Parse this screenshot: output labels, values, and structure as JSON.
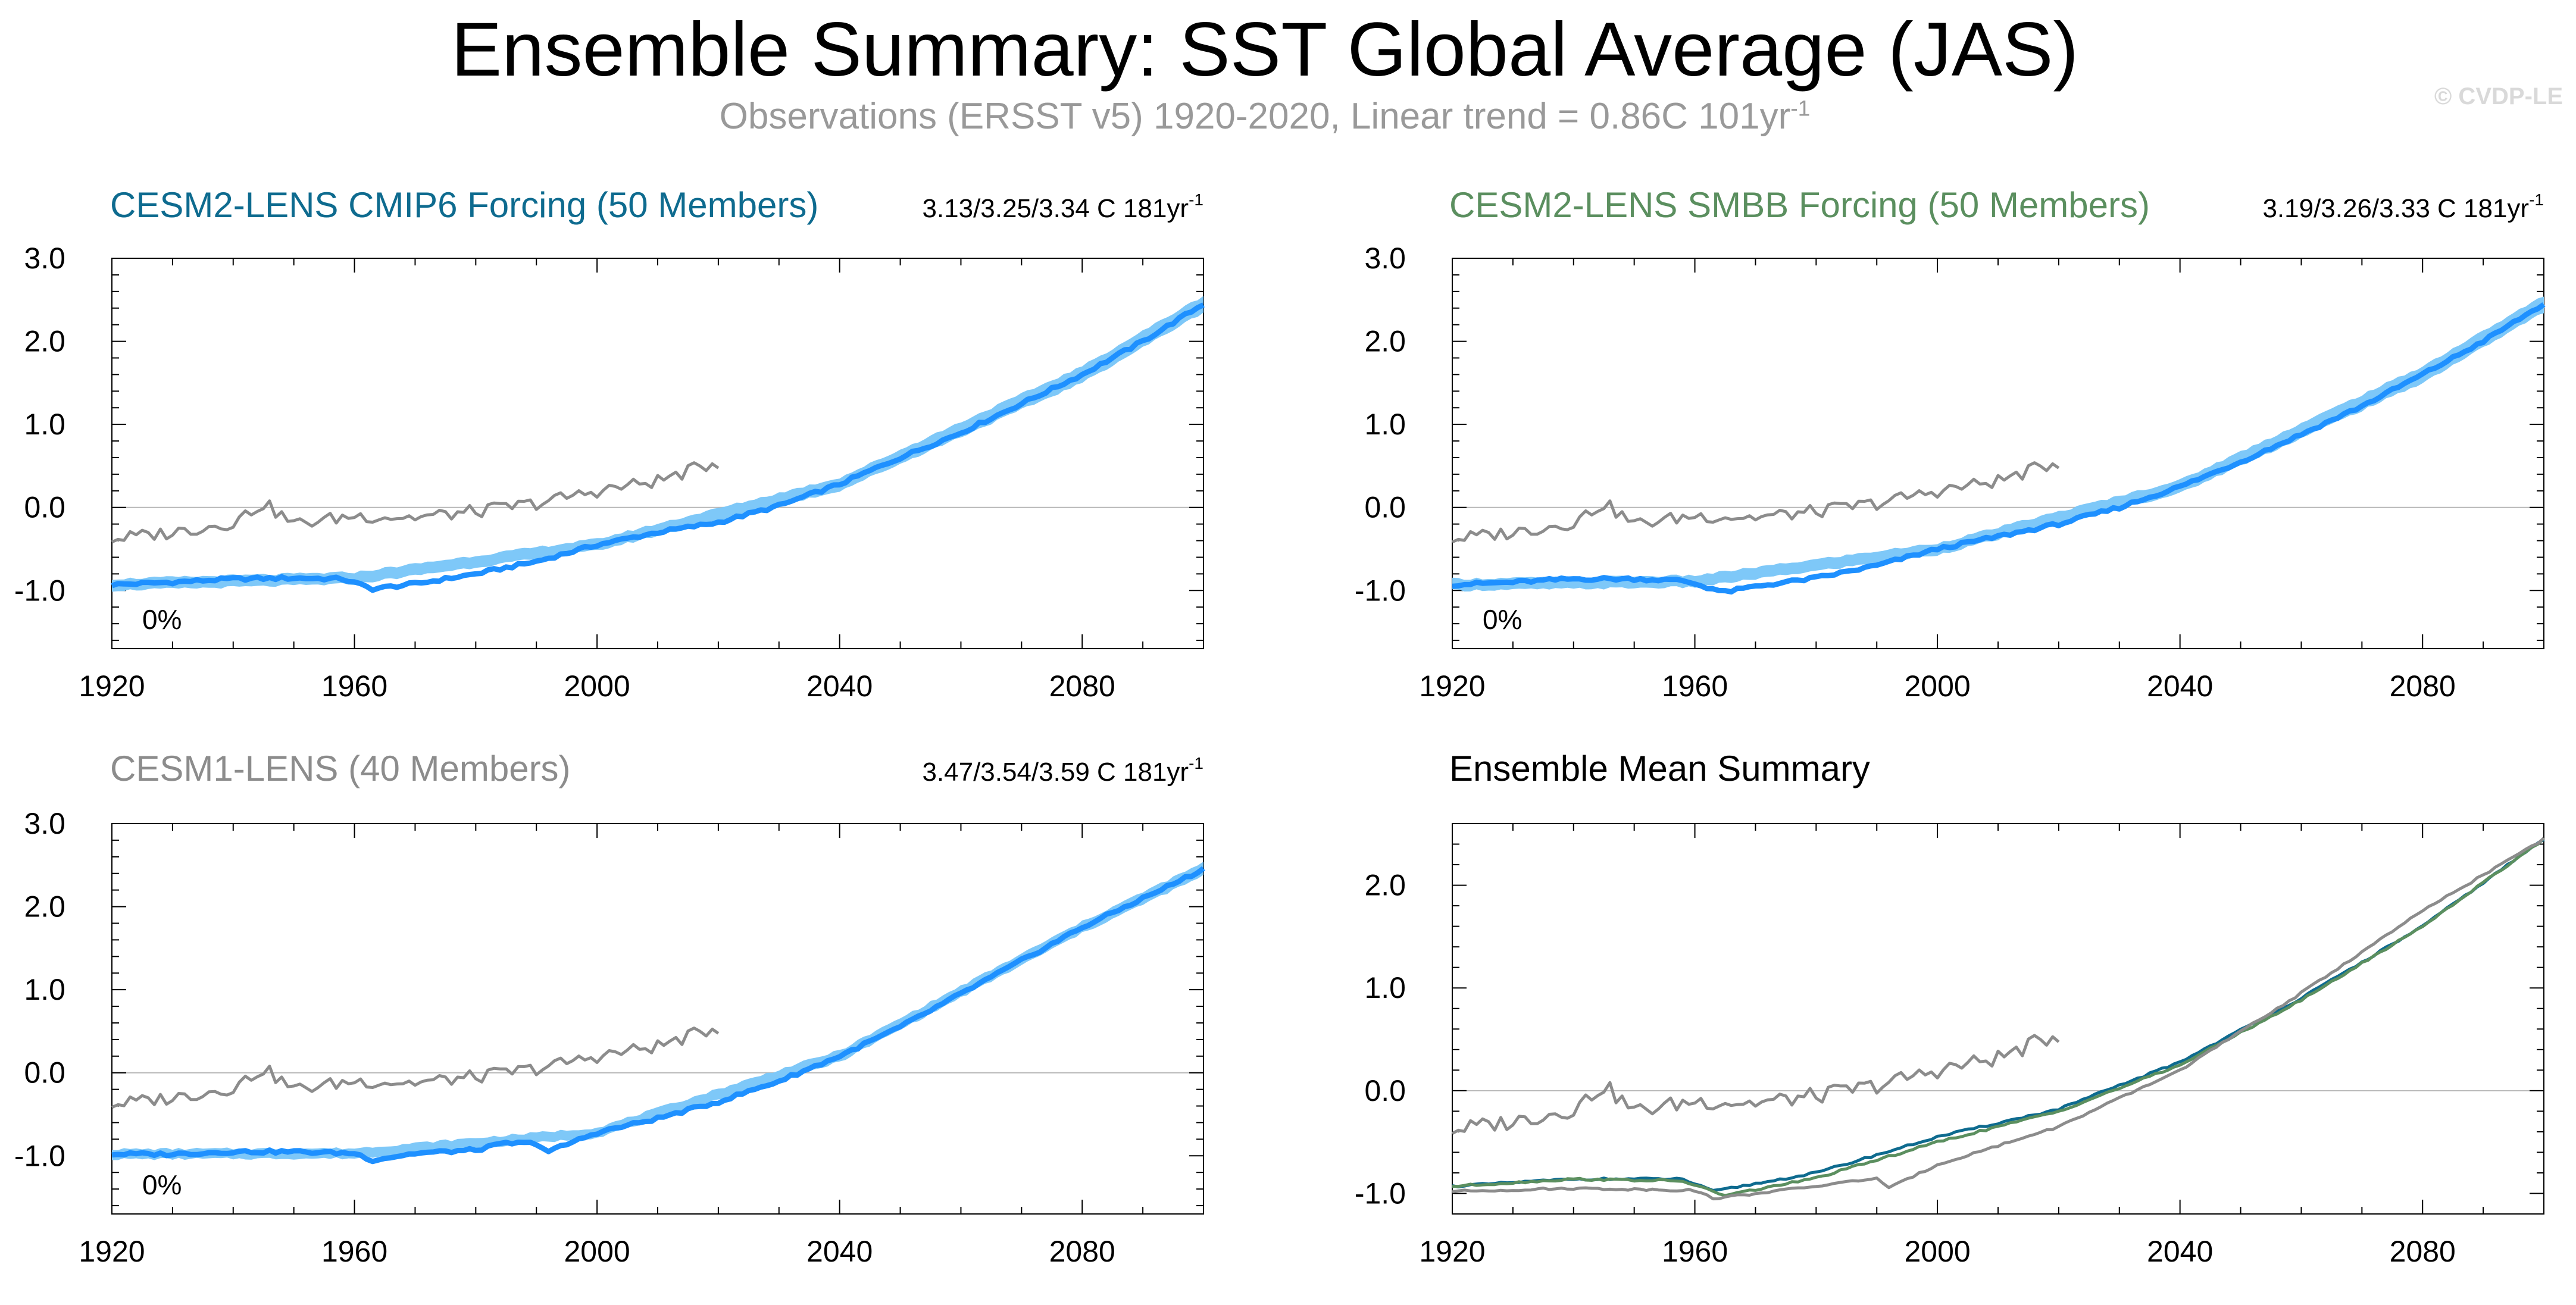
{
  "title": "Ensemble Summary: SST Global Average (JAS)",
  "subtitle": "Observations (ERSST v5) 1920-2020, Linear trend = 0.86C 101yr",
  "subtitle_superscript": "-1",
  "credit": "© CVDP-LE",
  "colors": {
    "observations": "#8c8c8c",
    "ensemble_spread": "#7ec8f8",
    "ensemble_mean": "#1e90ff",
    "cesm2_cmip6": "#0e6b8f",
    "cesm2_smbb": "#5b8f5f",
    "cesm1": "#8c8c8c"
  },
  "chart_data": [
    {
      "type": "line",
      "title": "CESM2-LENS CMIP6 Forcing (50 Members)",
      "title_color": "#0e6b8f",
      "stats": "3.13/3.25/3.34 C 181yr",
      "stats_superscript": "-1",
      "annotation": "0%",
      "xlabel": "",
      "ylabel": "",
      "xlim": [
        1920,
        2100
      ],
      "ylim": [
        -1.7,
        3.0
      ],
      "xticks": [
        "1920",
        "1960",
        "2000",
        "2040",
        "2080"
      ],
      "yticks": [
        "3.0",
        "2.0",
        "1.0",
        "0.0",
        "-1.0"
      ],
      "series": [
        {
          "name": "Ensemble mean",
          "x": [
            1920,
            1930,
            1940,
            1950,
            1958,
            1963,
            1970,
            1980,
            1990,
            2000,
            2010,
            2020,
            2030,
            2040,
            2050,
            2060,
            2070,
            2080,
            2090,
            2100
          ],
          "values": [
            -0.93,
            -0.9,
            -0.86,
            -0.85,
            -0.86,
            -0.98,
            -0.92,
            -0.8,
            -0.65,
            -0.45,
            -0.3,
            -0.18,
            0.02,
            0.28,
            0.6,
            0.9,
            1.25,
            1.6,
            2.0,
            2.45
          ]
        },
        {
          "name": "Ensemble range",
          "x": [
            1920,
            1960,
            2000,
            2040,
            2080,
            2100
          ],
          "values_low": [
            -1.0,
            -0.92,
            -0.52,
            0.2,
            1.5,
            2.35
          ],
          "values_high": [
            -0.86,
            -0.78,
            -0.38,
            0.36,
            1.7,
            2.55
          ]
        },
        {
          "name": "Observations (ERSST v5)",
          "x": [
            1920,
            1930,
            1940,
            1945,
            1950,
            1960,
            1970,
            1980,
            1990,
            2000,
            2010,
            2020
          ],
          "values": [
            -0.38,
            -0.3,
            -0.18,
            0.05,
            -0.2,
            -0.1,
            -0.12,
            -0.05,
            0.05,
            0.2,
            0.32,
            0.55
          ]
        }
      ]
    },
    {
      "type": "line",
      "title": "CESM2-LENS SMBB Forcing (50 Members)",
      "title_color": "#5b8f5f",
      "stats": "3.19/3.26/3.33 C 181yr",
      "stats_superscript": "-1",
      "annotation": "0%",
      "xlabel": "",
      "ylabel": "",
      "xlim": [
        1920,
        2100
      ],
      "ylim": [
        -1.7,
        3.0
      ],
      "xticks": [
        "1920",
        "1960",
        "2000",
        "2040",
        "2080"
      ],
      "yticks": [
        "3.0",
        "2.0",
        "1.0",
        "0.0",
        "-1.0"
      ],
      "series": [
        {
          "name": "Ensemble mean",
          "x": [
            1920,
            1930,
            1940,
            1950,
            1958,
            1965,
            1970,
            1980,
            1990,
            2000,
            2010,
            2020,
            2030,
            2040,
            2050,
            2060,
            2070,
            2080,
            2090,
            2100
          ],
          "values": [
            -0.93,
            -0.9,
            -0.86,
            -0.86,
            -0.88,
            -1.02,
            -0.95,
            -0.85,
            -0.7,
            -0.5,
            -0.35,
            -0.2,
            0.0,
            0.25,
            0.55,
            0.88,
            1.22,
            1.6,
            2.0,
            2.45
          ]
        },
        {
          "name": "Ensemble range",
          "x": [
            1920,
            1960,
            2000,
            2040,
            2080,
            2100
          ],
          "values_low": [
            -1.0,
            -0.96,
            -0.57,
            0.17,
            1.5,
            2.35
          ],
          "values_high": [
            -0.86,
            -0.82,
            -0.43,
            0.33,
            1.7,
            2.55
          ]
        },
        {
          "name": "Observations (ERSST v5)",
          "x": [
            1920,
            1930,
            1940,
            1945,
            1950,
            1960,
            1970,
            1980,
            1990,
            2000,
            2010,
            2020
          ],
          "values": [
            -0.38,
            -0.3,
            -0.18,
            0.05,
            -0.2,
            -0.1,
            -0.12,
            -0.05,
            0.05,
            0.2,
            0.32,
            0.55
          ]
        }
      ]
    },
    {
      "type": "line",
      "title": "CESM1-LENS (40 Members)",
      "title_color": "#8c8c8c",
      "stats": "3.47/3.54/3.59 C 181yr",
      "stats_superscript": "-1",
      "annotation": "0%",
      "xlabel": "",
      "ylabel": "",
      "xlim": [
        1920,
        2100
      ],
      "ylim": [
        -1.7,
        3.0
      ],
      "xticks": [
        "1920",
        "1960",
        "2000",
        "2040",
        "2080"
      ],
      "yticks": [
        "3.0",
        "2.0",
        "1.0",
        "0.0",
        "-1.0"
      ],
      "series": [
        {
          "name": "Ensemble mean",
          "x": [
            1920,
            1930,
            1940,
            1950,
            1960,
            1963,
            1970,
            1980,
            1985,
            1990,
            1992,
            2000,
            2010,
            2020,
            2030,
            2040,
            2050,
            2060,
            2070,
            2080,
            2090,
            2100
          ],
          "values": [
            -0.98,
            -0.98,
            -0.95,
            -0.95,
            -0.97,
            -1.05,
            -0.97,
            -0.93,
            -0.85,
            -0.85,
            -0.95,
            -0.72,
            -0.55,
            -0.35,
            -0.1,
            0.2,
            0.55,
            0.95,
            1.35,
            1.75,
            2.1,
            2.45
          ]
        },
        {
          "name": "Ensemble range",
          "x": [
            1920,
            1960,
            2000,
            2040,
            2080,
            2100
          ],
          "values_low": [
            -1.04,
            -1.03,
            -0.78,
            0.13,
            1.68,
            2.37
          ],
          "values_high": [
            -0.92,
            -0.91,
            -0.66,
            0.27,
            1.82,
            2.53
          ]
        },
        {
          "name": "Observations (ERSST v5)",
          "x": [
            1920,
            1930,
            1940,
            1945,
            1950,
            1960,
            1970,
            1980,
            1990,
            2000,
            2010,
            2020
          ],
          "values": [
            -0.38,
            -0.3,
            -0.18,
            0.05,
            -0.2,
            -0.1,
            -0.12,
            -0.05,
            0.05,
            0.2,
            0.32,
            0.55
          ]
        }
      ]
    },
    {
      "type": "line",
      "title": "Ensemble Mean Summary",
      "title_color": "#000000",
      "xlabel": "",
      "ylabel": "",
      "xlim": [
        1920,
        2100
      ],
      "ylim": [
        -1.2,
        2.6
      ],
      "xticks": [
        "1920",
        "1960",
        "2000",
        "2040",
        "2080"
      ],
      "yticks": [
        "2.0",
        "1.0",
        "0.0",
        "-1.0"
      ],
      "series": [
        {
          "name": "CESM2-LENS CMIP6 Forcing",
          "color": "#0e6b8f",
          "x": [
            1920,
            1940,
            1958,
            1963,
            1980,
            2000,
            2020,
            2040,
            2060,
            2080,
            2100
          ],
          "values": [
            -0.93,
            -0.86,
            -0.86,
            -0.98,
            -0.8,
            -0.45,
            -0.18,
            0.28,
            0.9,
            1.6,
            2.45
          ]
        },
        {
          "name": "CESM2-LENS SMBB Forcing",
          "color": "#5b8f5f",
          "x": [
            1920,
            1940,
            1958,
            1965,
            1980,
            2000,
            2020,
            2040,
            2060,
            2080,
            2100
          ],
          "values": [
            -0.93,
            -0.86,
            -0.88,
            -1.02,
            -0.85,
            -0.5,
            -0.2,
            0.25,
            0.88,
            1.6,
            2.45
          ]
        },
        {
          "name": "CESM1-LENS",
          "color": "#8c8c8c",
          "x": [
            1920,
            1940,
            1960,
            1963,
            1980,
            1990,
            1992,
            2000,
            2020,
            2040,
            2060,
            2080,
            2100
          ],
          "values": [
            -0.98,
            -0.95,
            -0.97,
            -1.05,
            -0.93,
            -0.85,
            -0.95,
            -0.72,
            -0.35,
            0.2,
            0.95,
            1.75,
            2.45
          ]
        },
        {
          "name": "Observations (ERSST v5)",
          "color": "#8c8c8c",
          "x": [
            1920,
            1930,
            1940,
            1945,
            1950,
            1960,
            1970,
            1980,
            1990,
            2000,
            2010,
            2020
          ],
          "values": [
            -0.38,
            -0.3,
            -0.18,
            0.05,
            -0.2,
            -0.1,
            -0.12,
            -0.05,
            0.05,
            0.2,
            0.32,
            0.55
          ]
        }
      ]
    }
  ]
}
